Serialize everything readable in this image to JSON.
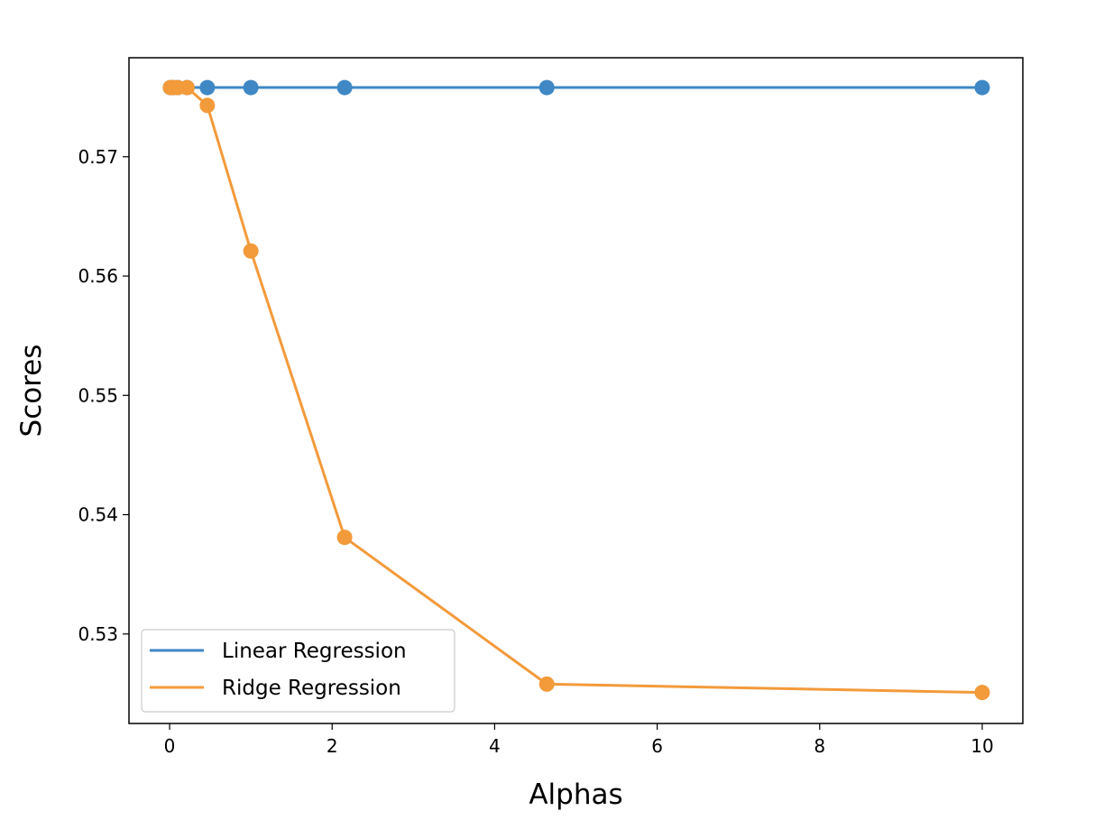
{
  "chart_data": {
    "type": "line",
    "title": "",
    "xlabel": "Alphas",
    "ylabel": "Scores",
    "xlim": [
      -0.5,
      10.5
    ],
    "ylim": [
      0.5225,
      0.5783
    ],
    "xticks": [
      0,
      2,
      4,
      6,
      8,
      10
    ],
    "xtick_labels": [
      "0",
      "2",
      "4",
      "6",
      "8",
      "10"
    ],
    "yticks": [
      0.53,
      0.54,
      0.55,
      0.56,
      0.57
    ],
    "ytick_labels": [
      "0.53",
      "0.54",
      "0.55",
      "0.56",
      "0.57"
    ],
    "grid": false,
    "legend_position": "lower-left",
    "series": [
      {
        "name": "Linear Regression",
        "color": "#3f88c5",
        "x": [
          0.01,
          0.0215,
          0.0464,
          0.1,
          0.215,
          0.464,
          1.0,
          2.154,
          4.642,
          10.0
        ],
        "y": [
          0.5758,
          0.5758,
          0.5758,
          0.5758,
          0.5758,
          0.5758,
          0.5758,
          0.5758,
          0.5758,
          0.5758
        ]
      },
      {
        "name": "Ridge Regression",
        "color": "#f39a3b",
        "x": [
          0.01,
          0.0215,
          0.0464,
          0.1,
          0.215,
          0.464,
          1.0,
          2.154,
          4.642,
          10.0
        ],
        "y": [
          0.5758,
          0.5758,
          0.5758,
          0.5758,
          0.5758,
          0.5743,
          0.5621,
          0.5381,
          0.5258,
          0.5251
        ]
      }
    ]
  }
}
